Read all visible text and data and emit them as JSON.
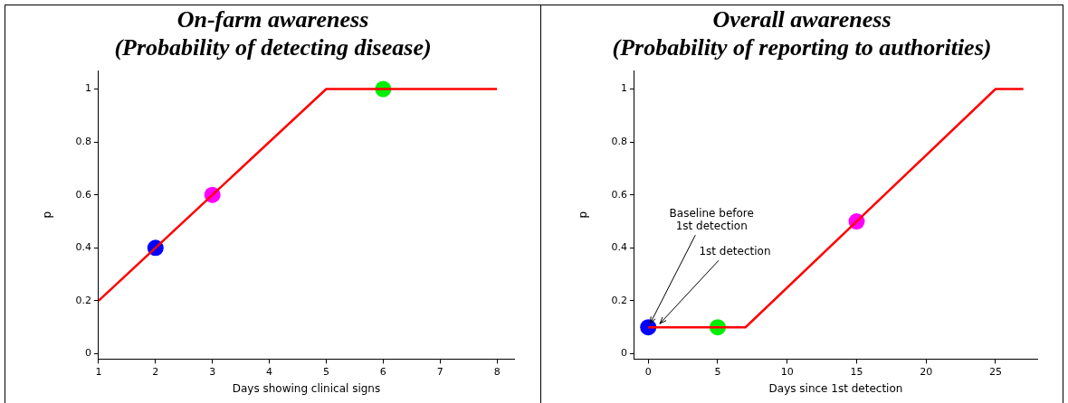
{
  "chart_data": [
    {
      "type": "line",
      "title": "On-farm awareness",
      "subtitle": "(Probability of detecting disease)",
      "xlabel": "Days showing clinical signs",
      "ylabel": "p",
      "xlim": [
        1,
        8.3
      ],
      "xticks": [
        1,
        2,
        3,
        4,
        5,
        6,
        7,
        8
      ],
      "ylim": [
        -0.02,
        1.07
      ],
      "yticks": [
        0,
        0.2,
        0.4,
        0.6,
        0.8,
        1
      ],
      "grid": false,
      "legend": false,
      "series": [
        {
          "type": "line",
          "color": "#ff0000",
          "x": [
            1,
            5,
            8
          ],
          "values": [
            0.2,
            1,
            1
          ],
          "marker": "none"
        },
        {
          "type": "scatter",
          "x": [
            2,
            3,
            6
          ],
          "values": [
            0.4,
            0.6,
            1
          ],
          "colors": [
            "#0000ff",
            "#ff00ff",
            "#00ee00"
          ],
          "marker": "circle"
        }
      ]
    },
    {
      "type": "line",
      "title": "Overall awareness",
      "subtitle": "(Probability of reporting to authorities)",
      "xlabel": "Days since 1st detection",
      "ylabel": "p",
      "xlim": [
        -1,
        28
      ],
      "xticks": [
        0,
        5,
        10,
        15,
        20,
        25
      ],
      "ylim": [
        -0.02,
        1.07
      ],
      "yticks": [
        0,
        0.2,
        0.4,
        0.6,
        0.8,
        1
      ],
      "grid": false,
      "legend": false,
      "annotations": [
        {
          "text": "Baseline before\n1st detection",
          "x": 0,
          "y": 0.1
        },
        {
          "text": "1st detection",
          "x": 0.7,
          "y": 0.1
        }
      ],
      "series": [
        {
          "type": "line",
          "color": "#ff0000",
          "x": [
            0,
            7,
            25,
            27
          ],
          "values": [
            0.1,
            0.1,
            1,
            1
          ],
          "marker": "none"
        },
        {
          "type": "scatter",
          "x": [
            0,
            5,
            15
          ],
          "values": [
            0.1,
            0.1,
            0.5
          ],
          "colors": [
            "#0000ff",
            "#00ee00",
            "#ff00ff"
          ],
          "marker": "circle"
        }
      ]
    }
  ]
}
